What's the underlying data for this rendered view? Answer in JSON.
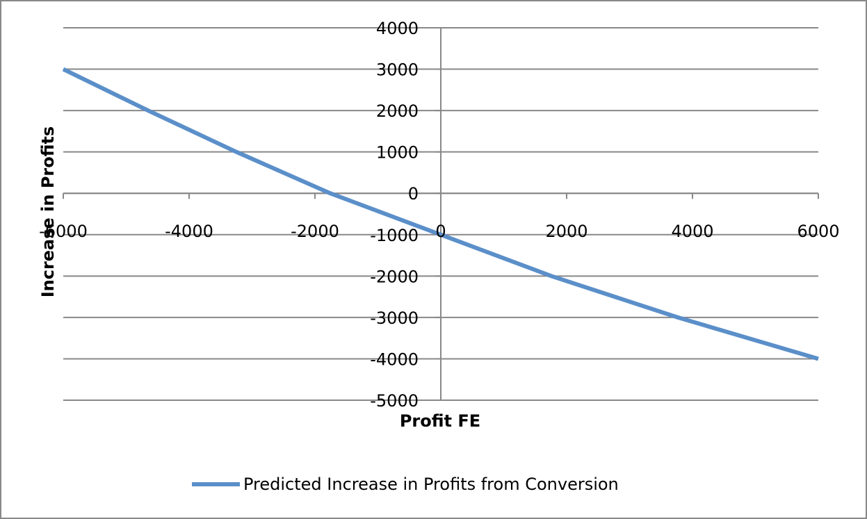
{
  "chart_data": {
    "type": "line",
    "x_label": "Profit FE",
    "y_label": "Increase in Profits",
    "x": [
      -6000,
      -4652,
      -3249,
      -1757,
      0,
      1757,
      3768,
      6000
    ],
    "series": [
      {
        "name": "Predicted Increase in Profits from Conversion",
        "color": "#5b8fc9",
        "values": [
          3000,
          2000,
          1000,
          0,
          -1000,
          -2000,
          -3000,
          -4000
        ]
      }
    ],
    "xlim": [
      -6000,
      6000
    ],
    "xticks": [
      -6000,
      -4000,
      -2000,
      0,
      2000,
      4000,
      6000
    ],
    "ylim": [
      -5000,
      4000
    ],
    "yticks": [
      -5000,
      -4000,
      -3000,
      -2000,
      -1000,
      0,
      1000,
      2000,
      3000,
      4000
    ],
    "grid": true,
    "legend": "bottom"
  }
}
